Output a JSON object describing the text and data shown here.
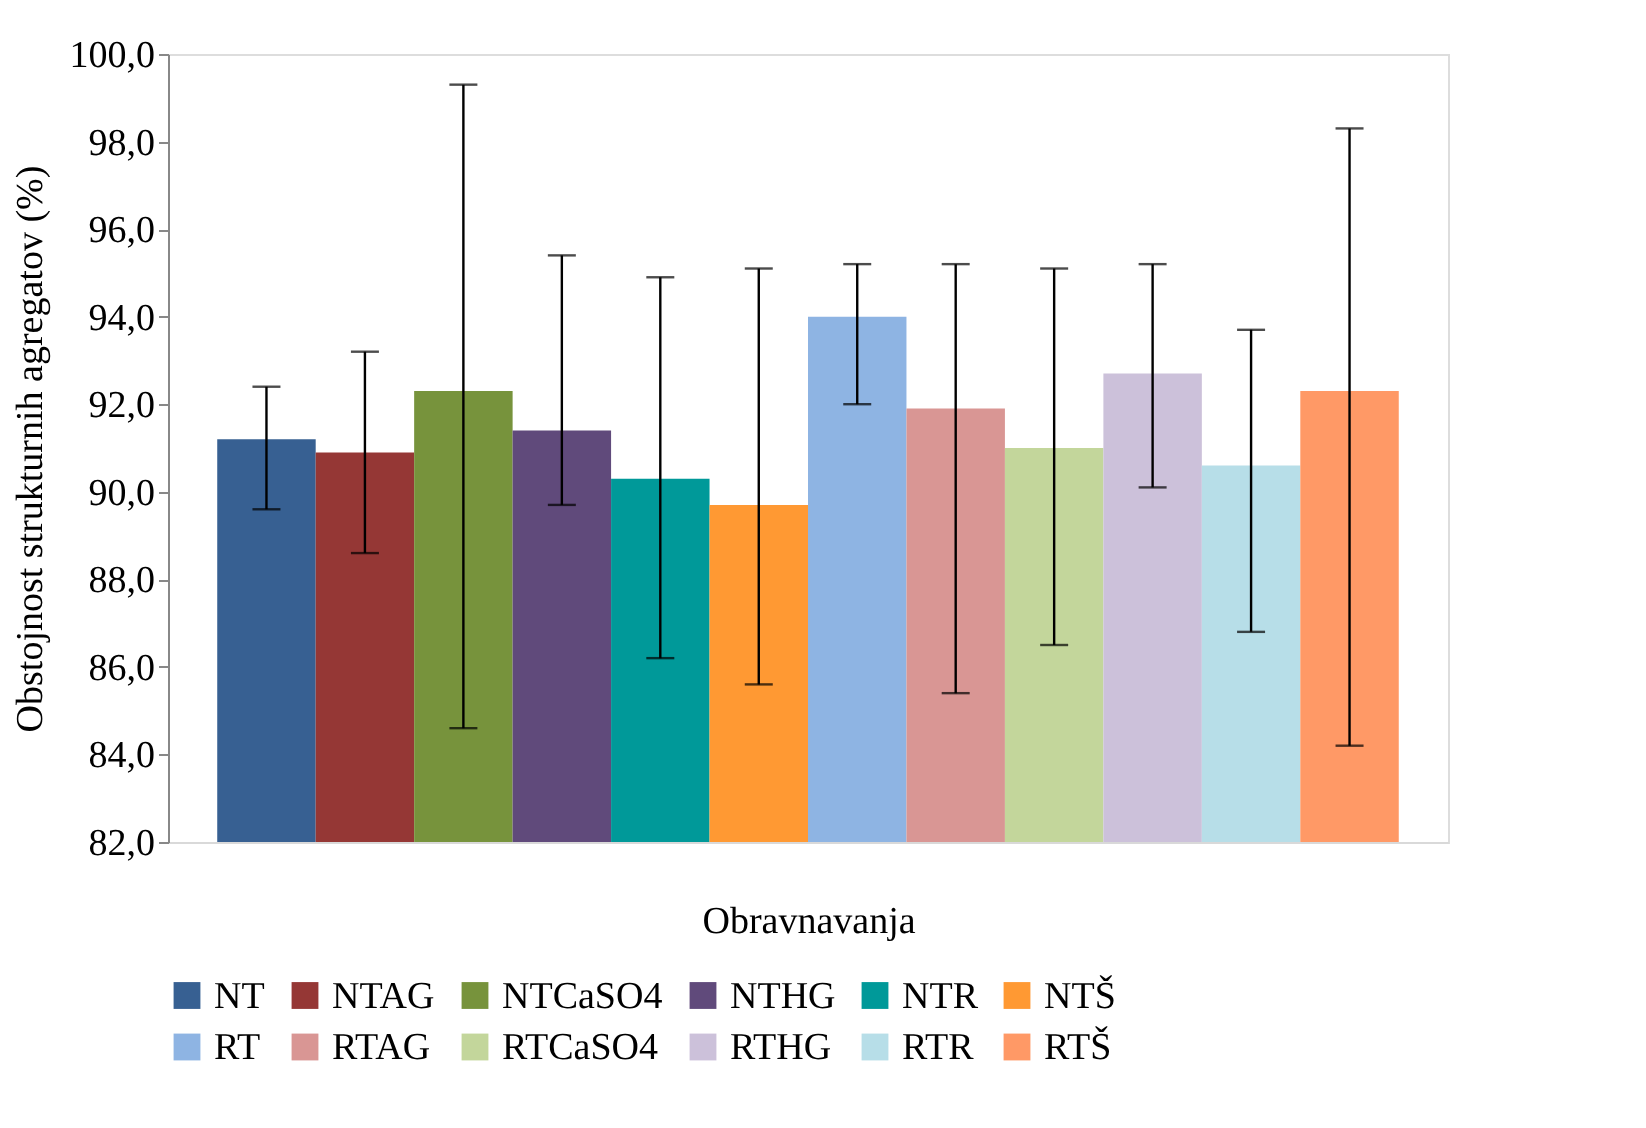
{
  "chart_data": {
    "type": "bar",
    "xlabel": "Obravnavanja",
    "ylabel": "Obstojnost strukturnih agregatov (%)",
    "categories": [
      null
    ],
    "ylim": [
      82,
      100
    ],
    "yticks": [
      {
        "value": 82,
        "label": "82,0"
      },
      {
        "value": 84,
        "label": "84,0"
      },
      {
        "value": 86,
        "label": "86,0"
      },
      {
        "value": 88,
        "label": "88,0"
      },
      {
        "value": 90,
        "label": "90,0"
      },
      {
        "value": 92,
        "label": "92,0"
      },
      {
        "value": 94,
        "label": "94,0"
      },
      {
        "value": 96,
        "label": "96,0"
      },
      {
        "value": 98,
        "label": "98,0"
      },
      {
        "value": 100,
        "label": "100,0"
      }
    ],
    "grid": false,
    "legend": "bottom",
    "series": [
      {
        "name": "NT",
        "color": "#376092",
        "values": [
          91.2
        ],
        "errors": [
          [
            89.6,
            92.4
          ]
        ]
      },
      {
        "name": "NTAG",
        "color": "#953735",
        "values": [
          90.9
        ],
        "errors": [
          [
            88.6,
            93.2
          ]
        ]
      },
      {
        "name": "NTCaSO4",
        "color": "#77933c",
        "values": [
          92.3
        ],
        "errors": [
          [
            84.6,
            99.3
          ]
        ]
      },
      {
        "name": "NTHG",
        "color": "#604a7b",
        "values": [
          91.4
        ],
        "errors": [
          [
            89.7,
            95.4
          ]
        ]
      },
      {
        "name": "NTR",
        "color": "#009999",
        "values": [
          90.3
        ],
        "errors": [
          [
            86.2,
            94.9
          ]
        ]
      },
      {
        "name": "NTŠ",
        "color": "#ff9933",
        "values": [
          89.7
        ],
        "errors": [
          [
            85.6,
            95.1
          ]
        ]
      },
      {
        "name": "RT",
        "color": "#8eb4e3",
        "values": [
          94.0
        ],
        "errors": [
          [
            92.0,
            95.2
          ]
        ]
      },
      {
        "name": "RTAG",
        "color": "#d99694",
        "values": [
          91.9
        ],
        "errors": [
          [
            85.4,
            95.2
          ]
        ]
      },
      {
        "name": "RTCaSO4",
        "color": "#c3d69b",
        "values": [
          91.0
        ],
        "errors": [
          [
            86.5,
            95.1
          ]
        ]
      },
      {
        "name": "RTHG",
        "color": "#ccc1da",
        "values": [
          92.7
        ],
        "errors": [
          [
            90.1,
            95.2
          ]
        ]
      },
      {
        "name": "RTR",
        "color": "#b7dee8",
        "values": [
          90.6
        ],
        "errors": [
          [
            86.8,
            93.7
          ]
        ]
      },
      {
        "name": "RTŠ",
        "color": "#ff9966",
        "values": [
          92.3
        ],
        "errors": [
          [
            84.2,
            98.3
          ]
        ]
      }
    ]
  }
}
